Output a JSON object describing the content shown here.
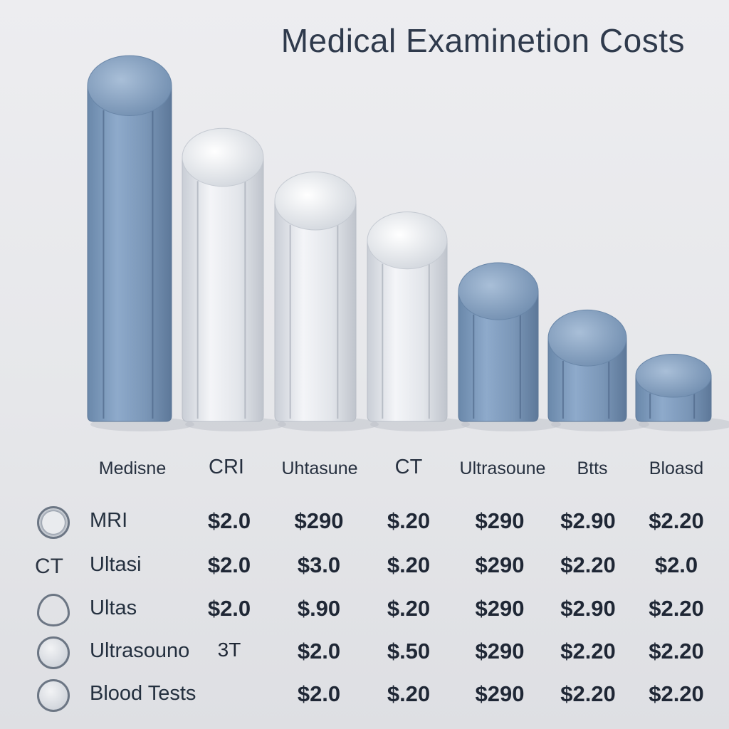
{
  "chart_data": {
    "type": "bar",
    "title": "Medical Examinetion Costs",
    "categories": [
      "Medisne",
      "CRI",
      "Uhtasune",
      "CT",
      "Ultrasoune",
      "Btts",
      "Bloasd"
    ],
    "values": [
      100,
      80,
      68,
      57,
      43,
      30,
      18
    ],
    "ylim": [
      0,
      100
    ],
    "bar_colors": [
      "#7f9dbd",
      "#e3e6ec",
      "#e3e6ec",
      "#e3e6ec",
      "#7a93b2",
      "#7a93b2",
      "#7a93b2"
    ],
    "grid": false,
    "legend": "none"
  },
  "table": {
    "rows": [
      {
        "icon": "ring-icon",
        "icon_text": "",
        "label": "MRI",
        "cells": [
          "$2.0",
          "$290",
          "$.20",
          "$290",
          "$2.90",
          "$2.20"
        ]
      },
      {
        "icon": "ct-text-icon",
        "icon_text": "CT",
        "label": "Ultasi",
        "cells": [
          "$2.0",
          "$3.0",
          "$.20",
          "$290",
          "$2.20",
          "$2.0"
        ]
      },
      {
        "icon": "drop-icon",
        "icon_text": "",
        "label": "Ultas",
        "cells": [
          "$2.0",
          "$.90",
          "$.20",
          "$290",
          "$2.90",
          "$2.20"
        ]
      },
      {
        "icon": "organ-icon",
        "icon_text": "",
        "label": "Ultrasouno",
        "cells": [
          "3T",
          "$2.0",
          "$.50",
          "$290",
          "$2.20",
          "$2.20"
        ]
      },
      {
        "icon": "blood-icon",
        "icon_text": "",
        "label": "Blood Tests",
        "cells": [
          "",
          "$2.0",
          "$.20",
          "$290",
          "$2.20",
          "$2.20"
        ]
      }
    ]
  },
  "colors": {
    "steel_blue": "#7f9dbd",
    "silver": "#e3e6ec",
    "text": "#24303f"
  }
}
